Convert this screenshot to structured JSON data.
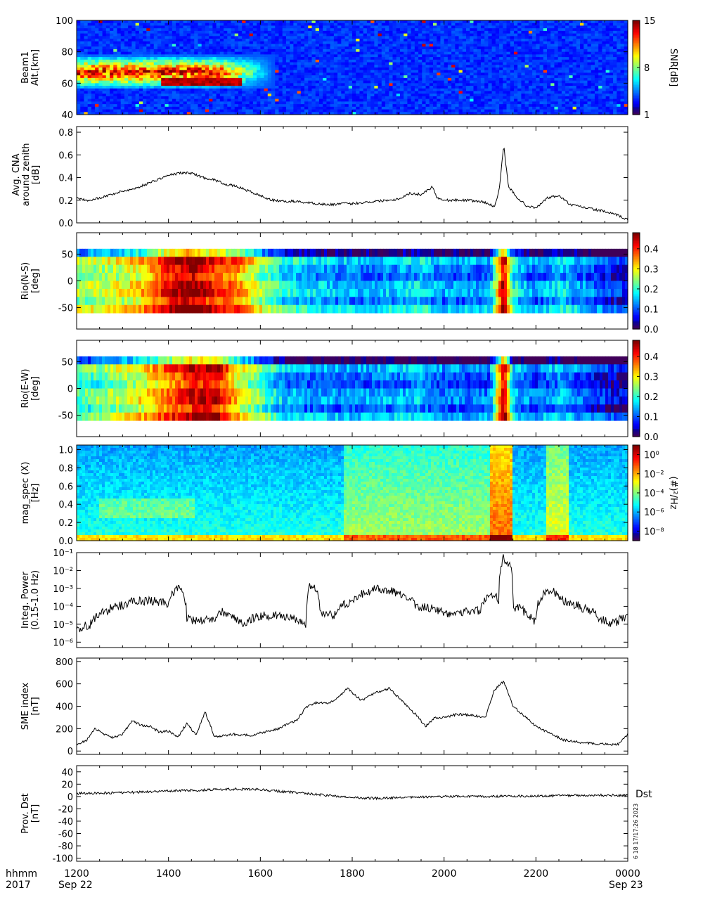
{
  "figure": {
    "time_axis": {
      "tick_labels": [
        "1200",
        "1400",
        "1600",
        "1800",
        "2000",
        "2200",
        "0000"
      ],
      "tick_hours": [
        12,
        14,
        16,
        18,
        20,
        22,
        24
      ],
      "range_hours": [
        12,
        24
      ],
      "start_date": "Sep 22",
      "end_date": "Sep 23",
      "row_label_format": "hhmm",
      "row_label_year": "2017"
    },
    "side_annotation": "Dst",
    "vertical_stamp": "6 18 17/17:26 2023"
  },
  "chart_data": [
    {
      "type": "heatmap",
      "ylabel": [
        "Beam1",
        "Alt.[km]"
      ],
      "yticks": [
        40,
        60,
        80,
        100
      ],
      "ylim": [
        40,
        100
      ],
      "colorbar": {
        "label": "SNR[dB]",
        "ticks": [
          "1",
          "8",
          "15"
        ],
        "range": [
          1,
          15
        ],
        "colormap": "rainbow"
      },
      "features": [
        {
          "x_hours": [
            12.0,
            16.3
          ],
          "y_km": [
            57,
            78
          ],
          "level": "high",
          "note": "enhanced SNR layer"
        },
        {
          "x_hours": [
            12.0,
            24.0
          ],
          "y_km": [
            40,
            100
          ],
          "level": "low",
          "note": "background"
        }
      ]
    },
    {
      "type": "line",
      "ylabel": [
        "Avg. CNA",
        "around zenith",
        "[dB]"
      ],
      "yticks": [
        "0.0",
        "0.2",
        "0.4",
        "0.6",
        "0.8"
      ],
      "ylim": [
        0,
        0.85
      ],
      "x_hours": [
        12.0,
        12.25,
        12.5,
        12.75,
        13.0,
        13.25,
        13.5,
        13.75,
        14.0,
        14.25,
        14.5,
        14.75,
        15.0,
        15.25,
        15.5,
        15.75,
        16.0,
        16.25,
        16.5,
        16.75,
        17.0,
        17.25,
        17.5,
        17.75,
        18.0,
        18.25,
        18.5,
        18.75,
        19.0,
        19.25,
        19.5,
        19.75,
        19.85,
        20.0,
        20.25,
        20.5,
        20.75,
        20.9,
        21.1,
        21.2,
        21.3,
        21.4,
        21.6,
        21.8,
        22.0,
        22.25,
        22.5,
        22.75,
        23.0,
        23.25,
        23.5,
        23.75,
        24.0
      ],
      "values": [
        0.22,
        0.2,
        0.22,
        0.25,
        0.28,
        0.3,
        0.34,
        0.38,
        0.42,
        0.44,
        0.44,
        0.4,
        0.38,
        0.34,
        0.32,
        0.28,
        0.24,
        0.2,
        0.19,
        0.19,
        0.18,
        0.17,
        0.16,
        0.17,
        0.17,
        0.18,
        0.19,
        0.2,
        0.21,
        0.26,
        0.25,
        0.32,
        0.22,
        0.2,
        0.2,
        0.2,
        0.19,
        0.18,
        0.14,
        0.3,
        0.68,
        0.32,
        0.22,
        0.15,
        0.13,
        0.22,
        0.24,
        0.16,
        0.14,
        0.12,
        0.1,
        0.07,
        0.03
      ]
    },
    {
      "type": "heatmap",
      "ylabel": [
        "Rio(N-S)",
        "[deg]"
      ],
      "yticks": [
        "-50",
        "0",
        "50"
      ],
      "ylim": [
        -90,
        90
      ],
      "colorbar": {
        "ticks": [
          "0.0",
          "0.1",
          "0.2",
          "0.3",
          "0.4"
        ],
        "range": [
          0,
          0.48
        ],
        "colormap": "rainbow"
      },
      "column_profile_hours": [
        12.0,
        12.5,
        13.0,
        13.5,
        14.0,
        14.5,
        15.0,
        15.5,
        16.0,
        16.5,
        17.0,
        17.5,
        18.0,
        18.5,
        19.0,
        19.5,
        20.0,
        20.5,
        21.0,
        21.3,
        21.5,
        22.0,
        22.5,
        23.0,
        23.5,
        24.0
      ],
      "column_profile_values": [
        0.24,
        0.26,
        0.28,
        0.32,
        0.42,
        0.46,
        0.4,
        0.36,
        0.26,
        0.18,
        0.16,
        0.14,
        0.13,
        0.13,
        0.14,
        0.16,
        0.12,
        0.12,
        0.12,
        0.46,
        0.18,
        0.1,
        0.16,
        0.12,
        0.08,
        0.05
      ]
    },
    {
      "type": "heatmap",
      "ylabel": [
        "Rio(E-W)",
        "[deg]"
      ],
      "yticks": [
        "-50",
        "0",
        "50"
      ],
      "ylim": [
        -90,
        90
      ],
      "colorbar": {
        "ticks": [
          "0.0",
          "0.1",
          "0.2",
          "0.3",
          "0.4"
        ],
        "range": [
          0,
          0.48
        ],
        "colormap": "rainbow"
      },
      "column_profile_hours": [
        12.0,
        12.5,
        13.0,
        13.5,
        14.0,
        14.5,
        15.0,
        15.5,
        16.0,
        16.5,
        17.0,
        17.5,
        18.0,
        18.5,
        19.0,
        19.5,
        20.0,
        20.5,
        21.0,
        21.3,
        21.5,
        22.0,
        22.5,
        23.0,
        23.5,
        24.0
      ],
      "column_profile_values": [
        0.2,
        0.22,
        0.26,
        0.3,
        0.36,
        0.42,
        0.44,
        0.3,
        0.22,
        0.14,
        0.12,
        0.12,
        0.11,
        0.12,
        0.13,
        0.14,
        0.1,
        0.1,
        0.1,
        0.46,
        0.14,
        0.09,
        0.14,
        0.09,
        0.06,
        0.04
      ]
    },
    {
      "type": "heatmap",
      "ylabel": [
        "mag_spec (X)",
        "[Hz]"
      ],
      "yticks": [
        "0.0",
        "0.2",
        "0.4",
        "0.6",
        "0.8",
        "1.0"
      ],
      "ylim": [
        0,
        1.05
      ],
      "colorbar": {
        "label": "(#)²/Hz",
        "ticks": [
          "10⁰",
          "10⁻²",
          "10⁻⁴",
          "10⁻⁶",
          "10⁻⁸"
        ],
        "range_log10": [
          -9,
          1
        ],
        "colormap": "rainbow"
      },
      "features": [
        {
          "x_hours": [
            21.0,
            21.4
          ],
          "level": "high",
          "note": "broadband burst"
        },
        {
          "x_hours": [
            22.2,
            22.7
          ],
          "level": "medium",
          "note": "broadband burst"
        }
      ]
    },
    {
      "type": "line",
      "ylabel": [
        "Integ. Power",
        "(0.15-1.0 Hz)"
      ],
      "yticks": [
        "10⁻⁶",
        "10⁻⁵",
        "10⁻⁴",
        "10⁻³",
        "10⁻²",
        "10⁻¹"
      ],
      "yscale": "log",
      "ylim": [
        5e-07,
        0.1
      ],
      "x_hours": [
        12.0,
        12.3,
        12.6,
        13.0,
        13.3,
        13.6,
        14.0,
        14.2,
        14.4,
        14.6,
        15.0,
        15.2,
        15.4,
        15.6,
        16.0,
        16.4,
        16.8,
        17.0,
        17.1,
        17.3,
        17.6,
        18.0,
        18.3,
        18.6,
        19.0,
        19.4,
        19.8,
        20.0,
        20.4,
        20.8,
        21.0,
        21.2,
        21.3,
        21.5,
        21.8,
        22.0,
        22.3,
        22.6,
        23.0,
        23.4,
        23.7,
        24.0
      ],
      "values": [
        5e-06,
        1e-05,
        5e-05,
        0.00012,
        0.0002,
        0.0002,
        0.00015,
        0.001,
        2e-05,
        1.5e-05,
        2e-05,
        5e-05,
        3e-05,
        1e-05,
        3e-05,
        3e-05,
        1.5e-05,
        1e-05,
        0.0015,
        5e-05,
        3e-05,
        0.0002,
        0.0006,
        0.001,
        0.0005,
        0.0001,
        7e-05,
        4e-05,
        5e-05,
        6e-05,
        0.0005,
        0.0002,
        0.05,
        0.0001,
        4e-05,
        1e-05,
        0.0008,
        0.0002,
        8e-05,
        2e-05,
        1e-05,
        3e-05
      ]
    },
    {
      "type": "line",
      "ylabel": [
        "SME index",
        "[nT]"
      ],
      "yticks": [
        "0",
        "200",
        "400",
        "600",
        "800"
      ],
      "ylim": [
        -30,
        830
      ],
      "x_hours": [
        12.0,
        12.2,
        12.4,
        12.6,
        12.8,
        13.0,
        13.2,
        13.4,
        13.6,
        13.8,
        14.0,
        14.2,
        14.4,
        14.6,
        14.8,
        15.0,
        15.4,
        15.8,
        16.0,
        16.4,
        16.8,
        17.0,
        17.2,
        17.5,
        17.7,
        17.9,
        18.2,
        18.5,
        18.8,
        19.0,
        19.2,
        19.4,
        19.6,
        19.8,
        20.0,
        20.3,
        20.6,
        20.9,
        21.1,
        21.3,
        21.5,
        21.7,
        22.0,
        22.3,
        22.6,
        22.9,
        23.2,
        23.5,
        23.8,
        24.0
      ],
      "values": [
        60,
        90,
        200,
        150,
        120,
        150,
        270,
        230,
        220,
        170,
        180,
        120,
        250,
        140,
        350,
        130,
        150,
        140,
        160,
        200,
        280,
        390,
        430,
        430,
        480,
        560,
        450,
        520,
        560,
        480,
        400,
        320,
        220,
        300,
        300,
        330,
        320,
        300,
        550,
        620,
        400,
        330,
        220,
        160,
        100,
        80,
        70,
        60,
        60,
        150
      ]
    },
    {
      "type": "line",
      "ylabel": [
        "Prov. Dst",
        "[nT]"
      ],
      "yticks": [
        "-100",
        "-80",
        "-60",
        "-40",
        "-20",
        "0",
        "20",
        "40"
      ],
      "ylim": [
        -105,
        50
      ],
      "x_hours": [
        12.0,
        13.0,
        14.0,
        15.0,
        15.5,
        16.0,
        17.0,
        18.0,
        18.5,
        19.0,
        20.0,
        21.0,
        22.0,
        23.0,
        24.0
      ],
      "values": [
        5,
        6,
        9,
        11,
        12,
        11,
        5,
        -2,
        -3,
        -2,
        0,
        0,
        1,
        2,
        2
      ]
    }
  ]
}
